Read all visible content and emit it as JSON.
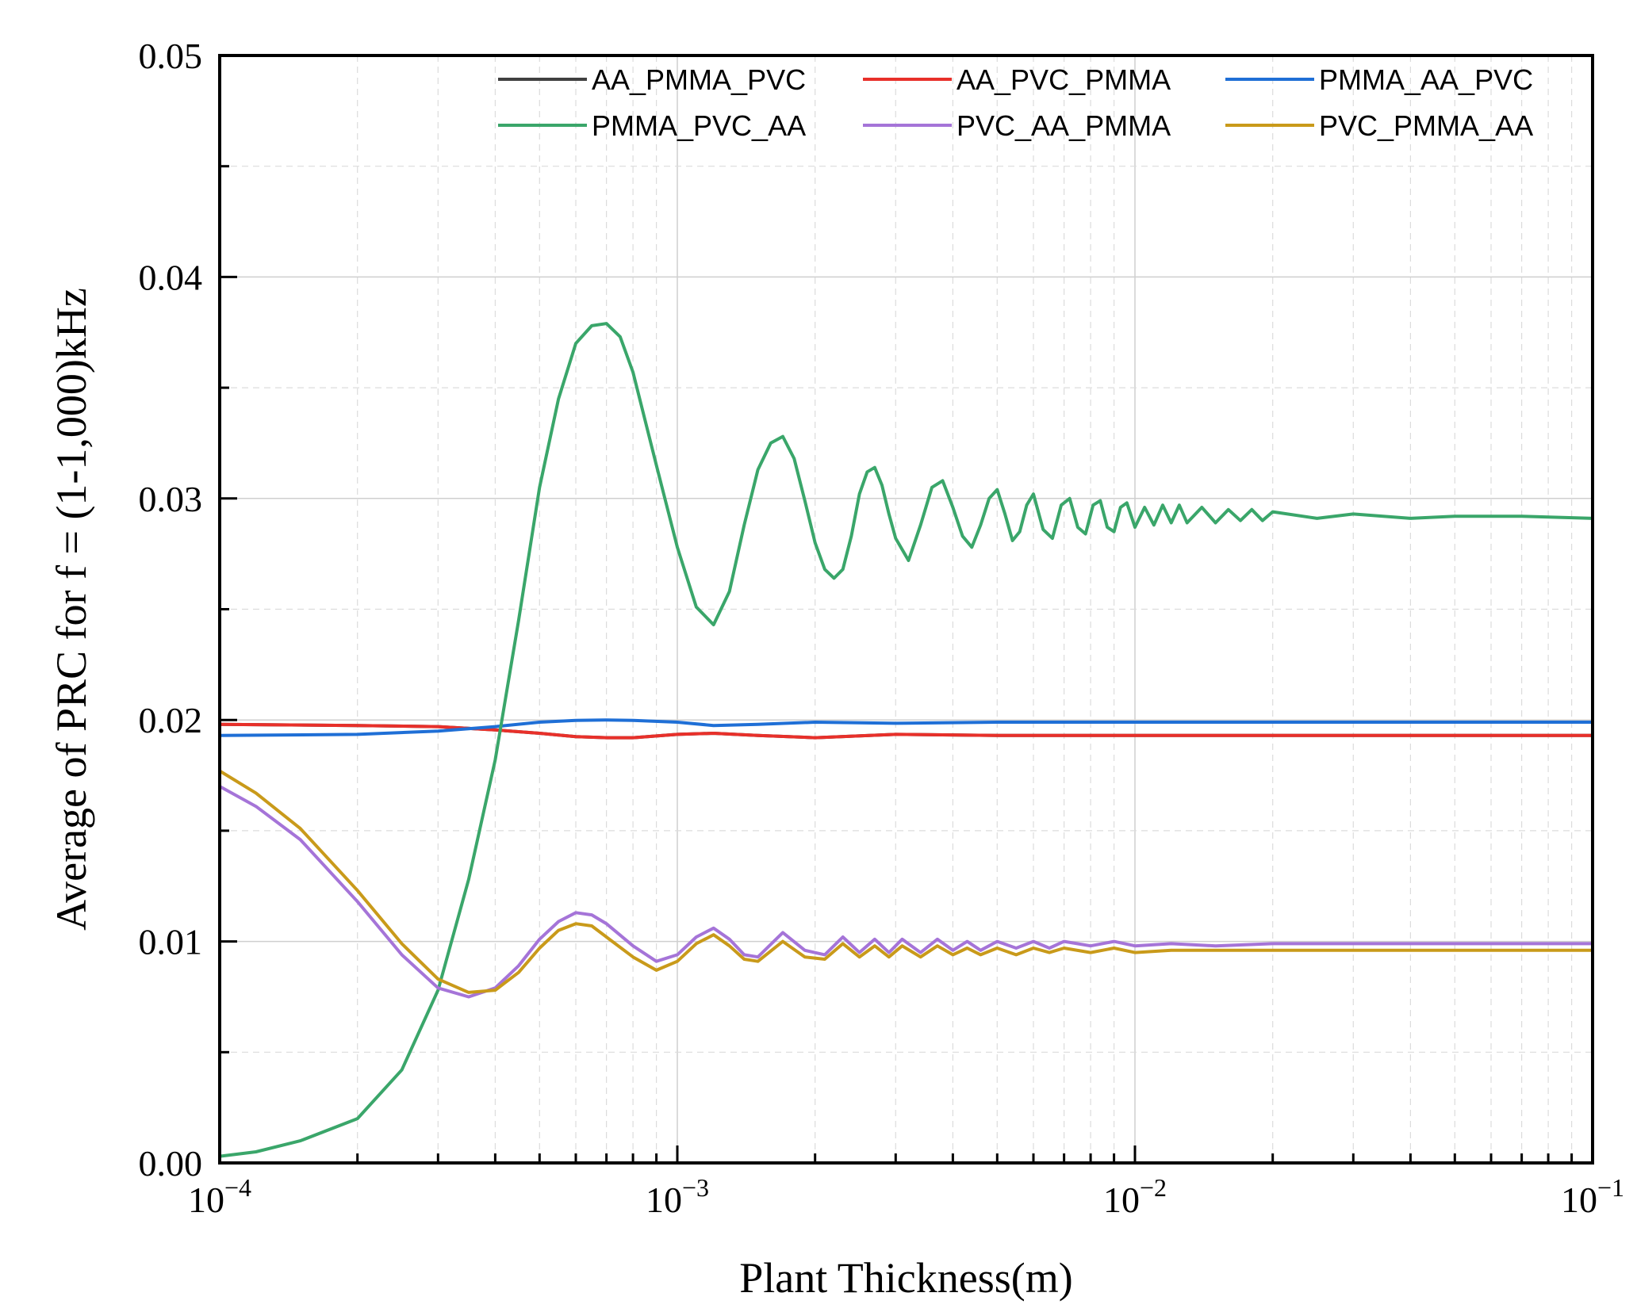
{
  "chart_data": {
    "type": "line",
    "title": "",
    "xlabel": "Plant Thickness(m)",
    "ylabel": "Average of PRC for f = (1-1,000)kHz",
    "xscale": "log",
    "xlim": [
      0.0001,
      0.1
    ],
    "ylim": [
      0.0,
      0.05
    ],
    "x_ticks": [
      {
        "value": 0.0001,
        "base": "10",
        "exp": "−4"
      },
      {
        "value": 0.001,
        "base": "10",
        "exp": "−3"
      },
      {
        "value": 0.01,
        "base": "10",
        "exp": "−2"
      },
      {
        "value": 0.1,
        "base": "10",
        "exp": "−1"
      }
    ],
    "y_ticks": [
      {
        "value": 0.0,
        "label": "0.00"
      },
      {
        "value": 0.01,
        "label": "0.01"
      },
      {
        "value": 0.02,
        "label": "0.02"
      },
      {
        "value": 0.03,
        "label": "0.03"
      },
      {
        "value": 0.04,
        "label": "0.04"
      },
      {
        "value": 0.05,
        "label": "0.05"
      }
    ],
    "grid": true,
    "legend_position": "top-right",
    "legend_columns": 3,
    "series": [
      {
        "name": "AA_PMMA_PVC",
        "color": "#404040",
        "x": [
          0.0001,
          0.0002,
          0.0003,
          0.0004,
          0.0005,
          0.0006,
          0.0007,
          0.0008,
          0.001,
          0.0012,
          0.0015,
          0.002,
          0.003,
          0.005,
          0.01,
          0.1
        ],
        "y": [
          0.0198,
          0.01975,
          0.0197,
          0.01955,
          0.0194,
          0.01925,
          0.0192,
          0.0192,
          0.01935,
          0.0194,
          0.0193,
          0.0192,
          0.01935,
          0.0193,
          0.0193,
          0.0193
        ]
      },
      {
        "name": "AA_PVC_PMMA",
        "color": "#e8302a",
        "x": [
          0.0001,
          0.0002,
          0.0003,
          0.0004,
          0.0005,
          0.0006,
          0.0007,
          0.0008,
          0.001,
          0.0012,
          0.0015,
          0.002,
          0.003,
          0.005,
          0.01,
          0.1
        ],
        "y": [
          0.0198,
          0.01975,
          0.0197,
          0.01955,
          0.0194,
          0.01925,
          0.0192,
          0.0192,
          0.01935,
          0.0194,
          0.0193,
          0.0192,
          0.01935,
          0.0193,
          0.0193,
          0.0193
        ]
      },
      {
        "name": "PMMA_AA_PVC",
        "color": "#1f6fd6",
        "x": [
          0.0001,
          0.0002,
          0.0003,
          0.0004,
          0.0005,
          0.0006,
          0.0007,
          0.0008,
          0.001,
          0.0012,
          0.0015,
          0.002,
          0.003,
          0.005,
          0.01,
          0.1
        ],
        "y": [
          0.0193,
          0.01935,
          0.0195,
          0.0197,
          0.0199,
          0.01998,
          0.02,
          0.01998,
          0.0199,
          0.01975,
          0.0198,
          0.0199,
          0.01985,
          0.0199,
          0.0199,
          0.0199
        ]
      },
      {
        "name": "PMMA_PVC_AA",
        "color": "#3aa66a",
        "x": [
          0.0001,
          0.00012,
          0.00015,
          0.0002,
          0.00025,
          0.0003,
          0.00035,
          0.0004,
          0.00045,
          0.0005,
          0.00055,
          0.0006,
          0.00065,
          0.0007,
          0.00075,
          0.0008,
          0.0009,
          0.001,
          0.0011,
          0.0012,
          0.0013,
          0.0014,
          0.0015,
          0.0016,
          0.0017,
          0.0018,
          0.0019,
          0.002,
          0.0021,
          0.0022,
          0.0023,
          0.0024,
          0.0025,
          0.0026,
          0.0027,
          0.0028,
          0.0029,
          0.003,
          0.0032,
          0.0034,
          0.0036,
          0.0038,
          0.004,
          0.0042,
          0.0044,
          0.0046,
          0.0048,
          0.005,
          0.0052,
          0.0054,
          0.0056,
          0.0058,
          0.006,
          0.0063,
          0.0066,
          0.0069,
          0.0072,
          0.0075,
          0.0078,
          0.0081,
          0.0084,
          0.0087,
          0.009,
          0.0093,
          0.0096,
          0.01,
          0.0105,
          0.011,
          0.0115,
          0.012,
          0.0125,
          0.013,
          0.014,
          0.015,
          0.016,
          0.017,
          0.018,
          0.019,
          0.02,
          0.025,
          0.03,
          0.04,
          0.05,
          0.07,
          0.1
        ],
        "y": [
          0.0003,
          0.0005,
          0.001,
          0.002,
          0.0042,
          0.0078,
          0.0128,
          0.0182,
          0.0245,
          0.0305,
          0.0345,
          0.037,
          0.0378,
          0.0379,
          0.0373,
          0.0357,
          0.0315,
          0.0278,
          0.0251,
          0.0243,
          0.0258,
          0.0288,
          0.0313,
          0.0325,
          0.0328,
          0.0318,
          0.0299,
          0.028,
          0.0268,
          0.0264,
          0.0268,
          0.0283,
          0.0302,
          0.0312,
          0.0314,
          0.0306,
          0.0293,
          0.0282,
          0.0272,
          0.0288,
          0.0305,
          0.0308,
          0.0296,
          0.0283,
          0.0278,
          0.0288,
          0.03,
          0.0304,
          0.0293,
          0.0281,
          0.0285,
          0.0297,
          0.0302,
          0.0286,
          0.0282,
          0.0297,
          0.03,
          0.0287,
          0.0284,
          0.0297,
          0.0299,
          0.0287,
          0.0285,
          0.0296,
          0.0298,
          0.0287,
          0.0296,
          0.0288,
          0.0297,
          0.0289,
          0.0297,
          0.0289,
          0.0296,
          0.0289,
          0.0295,
          0.029,
          0.0295,
          0.029,
          0.0294,
          0.0291,
          0.0293,
          0.0291,
          0.0292,
          0.0292,
          0.0291
        ]
      },
      {
        "name": "PVC_AA_PMMA",
        "color": "#a574d8",
        "x": [
          0.0001,
          0.00012,
          0.00015,
          0.0002,
          0.00025,
          0.0003,
          0.00035,
          0.0004,
          0.00045,
          0.0005,
          0.00055,
          0.0006,
          0.00065,
          0.0007,
          0.0008,
          0.0009,
          0.001,
          0.0011,
          0.0012,
          0.0013,
          0.0014,
          0.0015,
          0.0017,
          0.0019,
          0.0021,
          0.0023,
          0.0025,
          0.0027,
          0.0029,
          0.0031,
          0.0034,
          0.0037,
          0.004,
          0.0043,
          0.0046,
          0.005,
          0.0055,
          0.006,
          0.0065,
          0.007,
          0.008,
          0.009,
          0.01,
          0.012,
          0.015,
          0.02,
          0.03,
          0.05,
          0.1
        ],
        "y": [
          0.017,
          0.0161,
          0.0146,
          0.0118,
          0.0094,
          0.0079,
          0.0075,
          0.0079,
          0.0089,
          0.0101,
          0.0109,
          0.0113,
          0.0112,
          0.0108,
          0.0098,
          0.0091,
          0.0094,
          0.0102,
          0.0106,
          0.0101,
          0.0094,
          0.0093,
          0.0104,
          0.0096,
          0.0094,
          0.0102,
          0.0095,
          0.0101,
          0.0095,
          0.0101,
          0.0095,
          0.0101,
          0.0096,
          0.01,
          0.0096,
          0.01,
          0.0097,
          0.01,
          0.0097,
          0.01,
          0.0098,
          0.01,
          0.0098,
          0.0099,
          0.0098,
          0.0099,
          0.0099,
          0.0099,
          0.0099
        ]
      },
      {
        "name": "PVC_PMMA_AA",
        "color": "#c99a1a",
        "x": [
          0.0001,
          0.00012,
          0.00015,
          0.0002,
          0.00025,
          0.0003,
          0.00035,
          0.0004,
          0.00045,
          0.0005,
          0.00055,
          0.0006,
          0.00065,
          0.0007,
          0.0008,
          0.0009,
          0.001,
          0.0011,
          0.0012,
          0.0013,
          0.0014,
          0.0015,
          0.0017,
          0.0019,
          0.0021,
          0.0023,
          0.0025,
          0.0027,
          0.0029,
          0.0031,
          0.0034,
          0.0037,
          0.004,
          0.0043,
          0.0046,
          0.005,
          0.0055,
          0.006,
          0.0065,
          0.007,
          0.008,
          0.009,
          0.01,
          0.012,
          0.015,
          0.02,
          0.03,
          0.05,
          0.1
        ],
        "y": [
          0.0177,
          0.0167,
          0.0151,
          0.0123,
          0.0099,
          0.0083,
          0.0077,
          0.0078,
          0.0086,
          0.0097,
          0.0105,
          0.0108,
          0.0107,
          0.0102,
          0.0093,
          0.0087,
          0.0091,
          0.0099,
          0.0103,
          0.0098,
          0.0092,
          0.0091,
          0.01,
          0.0093,
          0.0092,
          0.0099,
          0.0093,
          0.0098,
          0.0093,
          0.0098,
          0.0093,
          0.0098,
          0.0094,
          0.0097,
          0.0094,
          0.0097,
          0.0094,
          0.0097,
          0.0095,
          0.0097,
          0.0095,
          0.0097,
          0.0095,
          0.0096,
          0.0096,
          0.0096,
          0.0096,
          0.0096,
          0.0096
        ]
      }
    ]
  }
}
